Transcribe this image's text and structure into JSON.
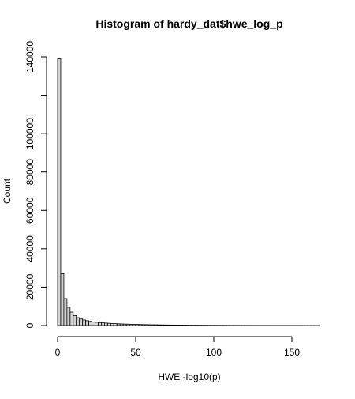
{
  "chart_data": {
    "type": "bar",
    "title": "Histogram of hardy_dat$hwe_log_p",
    "xlabel": "HWE -log10(p)",
    "ylabel": "Count",
    "xlim": [
      0,
      170
    ],
    "ylim": [
      0,
      140000
    ],
    "x_ticks": [
      0,
      50,
      100,
      150
    ],
    "y_ticks": [
      0,
      20000,
      40000,
      60000,
      80000,
      100000,
      140000
    ],
    "bin_width": 2,
    "bin_start": 0,
    "grid": false,
    "legend": "none",
    "values": [
      139000,
      27000,
      14000,
      9500,
      7000,
      5200,
      4100,
      3400,
      2900,
      2500,
      2150,
      1900,
      1700,
      1550,
      1400,
      1280,
      1170,
      1070,
      980,
      900,
      830,
      770,
      710,
      660,
      610,
      565,
      525,
      490,
      455,
      425,
      395,
      370,
      345,
      322,
      300,
      280,
      262,
      245,
      229,
      214,
      200,
      187,
      175,
      164,
      154,
      144,
      135,
      127,
      119,
      112,
      105,
      99,
      93,
      88,
      83,
      78,
      74,
      70,
      66,
      62,
      58,
      55,
      52,
      49,
      46,
      43,
      41,
      39,
      37,
      35,
      33,
      31,
      29,
      27,
      26,
      24,
      23,
      22,
      20,
      19,
      18,
      17,
      16,
      15
    ]
  }
}
